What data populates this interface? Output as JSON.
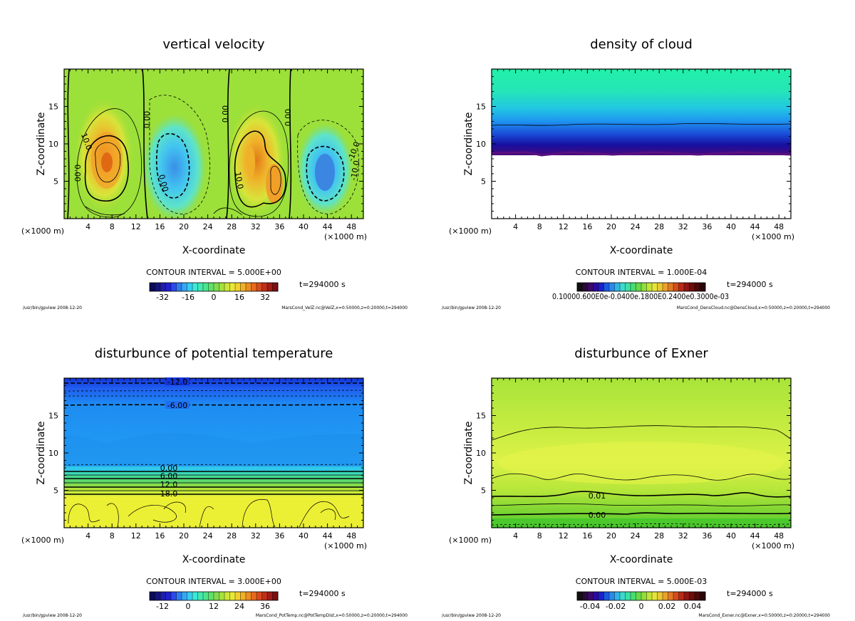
{
  "chart_data": [
    {
      "type": "heatmap",
      "title": "vertical velocity",
      "xlabel": "X-coordinate",
      "ylabel": "Z-coordinate",
      "x_unit": "(×1000 m)",
      "xlim": [
        0,
        50
      ],
      "ylim": [
        0,
        20
      ],
      "x_ticks": [
        4,
        8,
        12,
        16,
        20,
        24,
        28,
        32,
        36,
        40,
        44,
        48
      ],
      "y_ticks": [
        5,
        10,
        15
      ],
      "contour_interval": "CONTOUR INTERVAL = 5.000E+00",
      "time": "t=294000 s",
      "colorbar_ticks": [
        "-32",
        "-16",
        "0",
        "16",
        "32"
      ],
      "colorbar_range": [
        -40,
        40
      ],
      "contour_labels": [
        "0.00",
        "10.0",
        "0.00",
        "0.00",
        "0.00",
        "10.0",
        "0.00",
        "-10.0",
        "-10.0"
      ],
      "footer_left": "/usr/bin/gpview 2008-12-20",
      "footer_right": "MarsCond_VelZ.nc@VelZ,x=0:50000,z=0:20000,t=294000",
      "features": [
        {
          "x": 7,
          "z": 8,
          "value": 35
        },
        {
          "x": 20,
          "z": 8,
          "value": -12
        },
        {
          "x": 33,
          "z": 8,
          "value": 25
        },
        {
          "x": 35,
          "z": 4,
          "value": 30
        },
        {
          "x": 43,
          "z": 6,
          "value": -25
        }
      ]
    },
    {
      "type": "heatmap",
      "title": "density of cloud",
      "xlabel": "X-coordinate",
      "ylabel": "Z-coordinate",
      "x_unit": "(×1000 m)",
      "xlim": [
        0,
        50
      ],
      "ylim": [
        0,
        20
      ],
      "x_ticks": [
        4,
        8,
        12,
        16,
        20,
        24,
        28,
        32,
        36,
        40,
        44,
        48
      ],
      "y_ticks": [
        5,
        10,
        15
      ],
      "contour_interval": "CONTOUR INTERVAL = 1.000E-04",
      "time": "t=294000 s",
      "colorbar_ticks_text": "0.10000.600E0e-0.0400e.1800E0.2400e0.3000e-03",
      "footer_left": "/usr/bin/gpview 2008-12-20",
      "footer_right": "MarsCond_DensCloud.nc@DensCloud,x=0:50000,z=0:20000,t=294000",
      "cloud_base_z": 8.5,
      "contour_z": 12.3
    },
    {
      "type": "heatmap",
      "title": "disturbunce of potential temperature",
      "xlabel": "X-coordinate",
      "ylabel": "Z-coordinate",
      "x_unit": "(×1000 m)",
      "xlim": [
        0,
        50
      ],
      "ylim": [
        0,
        20
      ],
      "x_ticks": [
        4,
        8,
        12,
        16,
        20,
        24,
        28,
        32,
        36,
        40,
        44,
        48
      ],
      "y_ticks": [
        5,
        10,
        15
      ],
      "contour_interval": "CONTOUR INTERVAL = 3.000E+00",
      "time": "t=294000 s",
      "colorbar_ticks": [
        "-12",
        "0",
        "12",
        "24",
        "36"
      ],
      "colorbar_range": [
        -18,
        42
      ],
      "contour_labels": [
        "-12.0",
        "-6.00",
        "0.00",
        "6.00",
        "12.0",
        "18.0"
      ],
      "footer_left": "/usr/bin/gpview 2008-12-20",
      "footer_right": "MarsCond_PotTemp.nc@PotTempDist,x=0:50000,z=0:20000,t=294000"
    },
    {
      "type": "heatmap",
      "title": "disturbunce of Exner",
      "xlabel": "X-coordinate",
      "ylabel": "Z-coordinate",
      "x_unit": "(×1000 m)",
      "xlim": [
        0,
        50
      ],
      "ylim": [
        0,
        20
      ],
      "x_ticks": [
        4,
        8,
        12,
        16,
        20,
        24,
        28,
        32,
        36,
        40,
        44,
        48
      ],
      "y_ticks": [
        5,
        10,
        15
      ],
      "contour_interval": "CONTOUR INTERVAL = 5.000E-03",
      "time": "t=294000 s",
      "colorbar_ticks": [
        "-0.04",
        "-0.02",
        "0",
        "0.02",
        "0.04"
      ],
      "colorbar_range": [
        -0.05,
        0.05
      ],
      "contour_labels": [
        "0.01",
        "0.00"
      ],
      "footer_left": "/usr/bin/gpview 2008-12-20",
      "footer_right": "MarsCond_Exner.nc@Exner,x=0:50000,z=0:20000,t=294000"
    }
  ]
}
